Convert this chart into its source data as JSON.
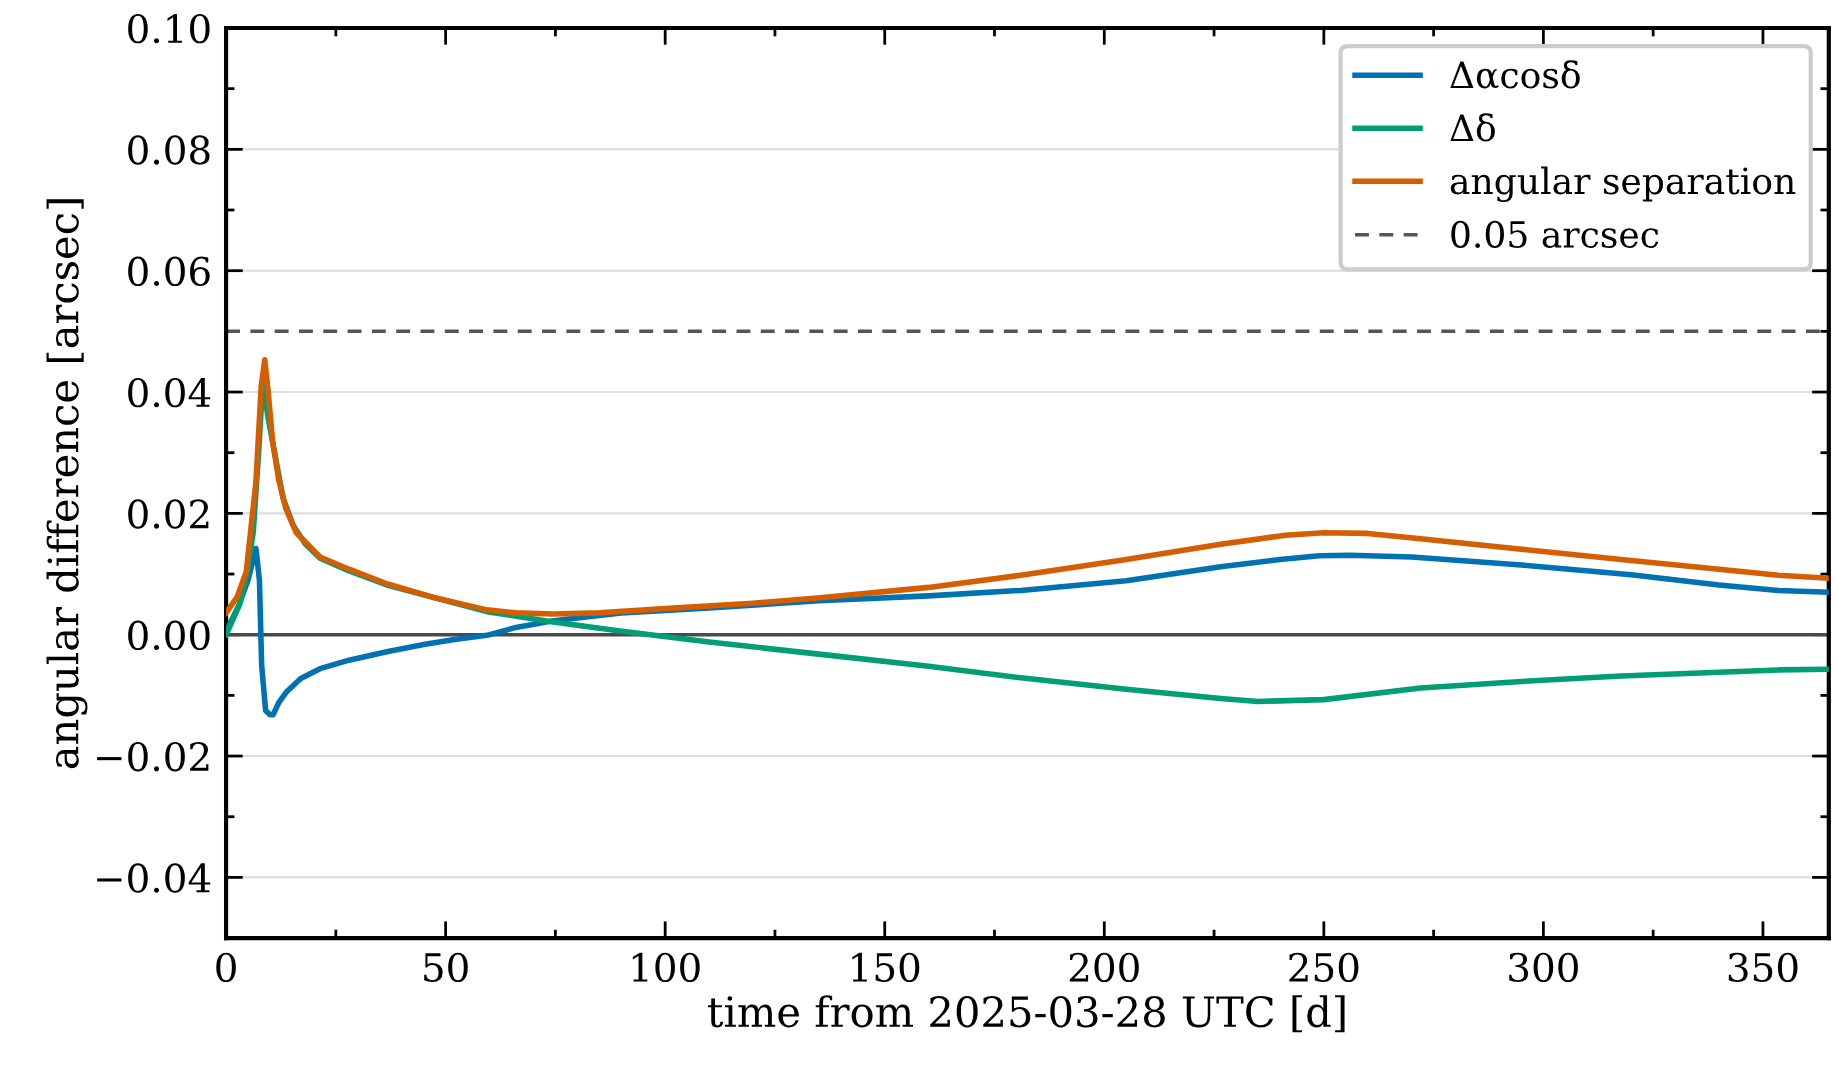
{
  "chart_data": {
    "type": "line",
    "xlabel": "time from 2025-03-28 UTC [d]",
    "ylabel": "angular difference [arcsec]",
    "xlim": [
      0,
      365
    ],
    "xticks": [
      0,
      50,
      100,
      150,
      200,
      250,
      300,
      350
    ],
    "ylim": [
      -0.05,
      0.1
    ],
    "yticks": [
      {
        "value": -0.04,
        "label": "−0.04"
      },
      {
        "value": -0.02,
        "label": "−0.02"
      },
      {
        "value": 0,
        "label": "0.00"
      },
      {
        "value": 0.02,
        "label": "0.02"
      },
      {
        "value": 0.04,
        "label": "0.04"
      },
      {
        "value": 0.06,
        "label": "0.06"
      },
      {
        "value": 0.08,
        "label": "0.08"
      },
      {
        "value": 0.1,
        "label": "0.10"
      }
    ],
    "grid": "y",
    "legend": "top right",
    "marker": "none",
    "line_style": "solid",
    "series": [
      {
        "name": "Δαcosδ",
        "color": "#0072b2",
        "x": [
          0,
          3,
          5,
          6.8,
          7.6,
          8.1,
          9,
          10,
          10.7,
          12,
          13.8,
          17,
          21.4,
          28,
          36.6,
          45,
          52,
          59.4,
          66,
          73.8,
          78,
          90,
          110,
          135,
          160,
          181,
          205,
          226.5,
          240,
          249,
          256,
          270,
          295,
          320,
          340,
          353.5,
          365
        ],
        "values": [
          0.0005,
          0.005,
          0.009,
          0.0142,
          0.009,
          -0.005,
          -0.0125,
          -0.0132,
          -0.0132,
          -0.0112,
          -0.0094,
          -0.0072,
          -0.0056,
          -0.0042,
          -0.0028,
          -0.0016,
          -0.0008,
          -0.0001,
          0.0012,
          0.0022,
          0.0026,
          0.0036,
          0.0044,
          0.0056,
          0.0064,
          0.0073,
          0.0089,
          0.0112,
          0.0124,
          0.013,
          0.0131,
          0.0128,
          0.0115,
          0.0099,
          0.0082,
          0.0073,
          0.007
        ]
      },
      {
        "name": "Δδ",
        "color": "#009e73",
        "x": [
          0,
          3.1,
          5,
          6.2,
          7.5,
          8.4,
          9.5,
          13,
          15.3,
          18,
          21.4,
          28,
          36.6,
          59.4,
          74.5,
          89.7,
          110,
          135,
          160,
          181,
          205,
          226.5,
          235,
          250,
          272,
          295,
          317.7,
          340,
          353.5,
          365
        ],
        "values": [
          0,
          0.005,
          0.011,
          0.017,
          0.031,
          0.0422,
          0.036,
          0.0225,
          0.018,
          0.015,
          0.0126,
          0.0105,
          0.0082,
          0.0038,
          0.0021,
          0.0006,
          -0.0012,
          -0.0032,
          -0.0052,
          -0.0071,
          -0.009,
          -0.0105,
          -0.011,
          -0.0107,
          -0.0088,
          -0.0077,
          -0.0068,
          -0.0062,
          -0.0058,
          -0.0057
        ]
      },
      {
        "name": "angular separation",
        "color": "#d55e00",
        "x": [
          0,
          2.5,
          4.6,
          6.8,
          8.0,
          8.8,
          9.6,
          10.6,
          12,
          13.6,
          16,
          21.4,
          28,
          36.6,
          48,
          59.4,
          66,
          74.5,
          85,
          100,
          120,
          135.3,
          160,
          181,
          205,
          226.5,
          241.3,
          250,
          260,
          272,
          295,
          317.7,
          340,
          353.5,
          365
        ],
        "values": [
          0.0036,
          0.0062,
          0.0104,
          0.0252,
          0.041,
          0.0453,
          0.04,
          0.0318,
          0.0255,
          0.0208,
          0.0168,
          0.0128,
          0.0108,
          0.0084,
          0.006,
          0.0041,
          0.0036,
          0.0034,
          0.0036,
          0.0043,
          0.0052,
          0.0061,
          0.0078,
          0.0098,
          0.0124,
          0.0149,
          0.0164,
          0.0168,
          0.0167,
          0.0158,
          0.0141,
          0.0124,
          0.0108,
          0.0098,
          0.0093
        ]
      }
    ],
    "ref_lines": [
      {
        "axis": "y",
        "value": 0,
        "label": null,
        "color": "#4a4a4a",
        "line_style": "solid"
      },
      {
        "axis": "y",
        "value": 0.05,
        "label": "0.05 arcsec",
        "color": "#555555",
        "line_style": "dashed"
      }
    ]
  }
}
